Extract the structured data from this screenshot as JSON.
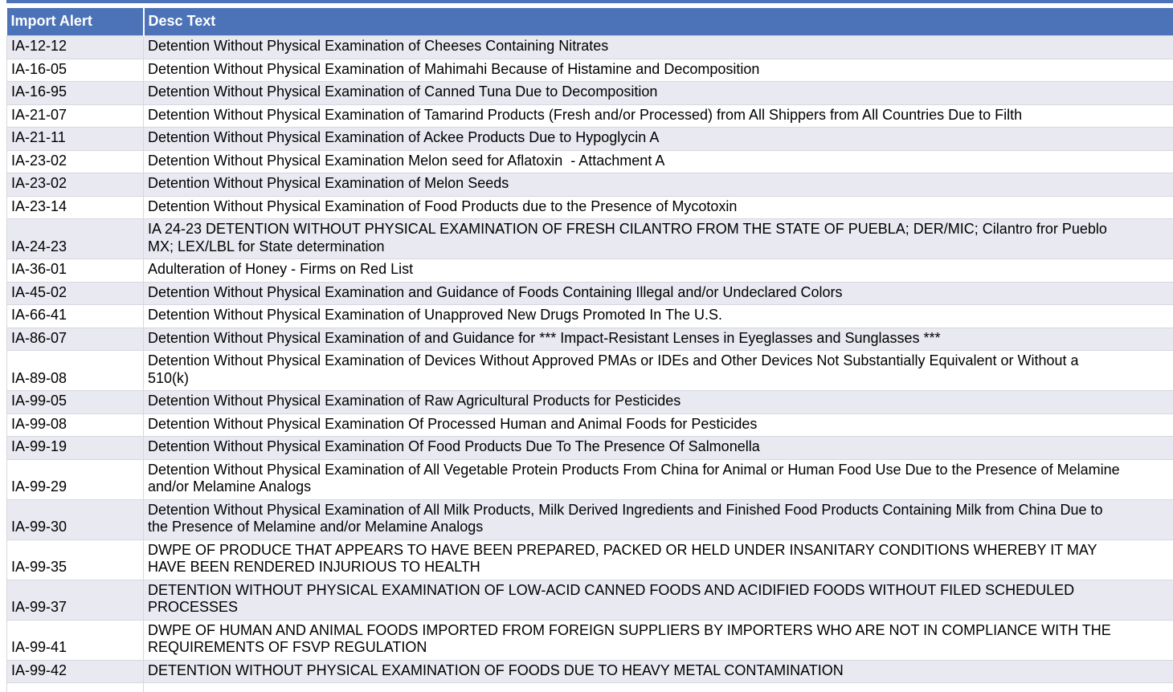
{
  "table": {
    "columns": [
      {
        "label": "Import Alert"
      },
      {
        "label": "Desc Text"
      }
    ],
    "rows": [
      {
        "id": "IA-12-12",
        "desc": "Detention Without Physical Examination of Cheeses Containing Nitrates"
      },
      {
        "id": "IA-16-05",
        "desc": "Detention Without Physical Examination of Mahimahi Because of Histamine and Decomposition"
      },
      {
        "id": "IA-16-95",
        "desc": "Detention Without Physical Examination of Canned Tuna Due to Decomposition"
      },
      {
        "id": "IA-21-07",
        "desc": "Detention Without Physical Examination of Tamarind Products (Fresh and/or Processed) from All Shippers from All Countries Due to Filth"
      },
      {
        "id": "IA-21-11",
        "desc": "Detention Without Physical Examination of Ackee Products Due to Hypoglycin A"
      },
      {
        "id": "IA-23-02",
        "desc": "Detention Without Physical Examination Melon seed for Aflatoxin  - Attachment A"
      },
      {
        "id": "IA-23-02",
        "desc": "Detention Without Physical Examination of Melon Seeds"
      },
      {
        "id": "IA-23-14",
        "desc": "Detention Without Physical Examination of Food Products due to the Presence of Mycotoxin"
      },
      {
        "id": "IA-24-23",
        "desc": "IA 24-23 DETENTION WITHOUT PHYSICAL EXAMINATION OF FRESH CILANTRO FROM THE STATE OF PUEBLA; DER/MIC; Cilantro fror Pueblo MX; LEX/LBL for State determination"
      },
      {
        "id": "IA-36-01",
        "desc": "Adulteration of Honey - Firms on Red List"
      },
      {
        "id": "IA-45-02",
        "desc": "Detention Without Physical Examination and Guidance of Foods Containing Illegal and/or Undeclared Colors"
      },
      {
        "id": "IA-66-41",
        "desc": "Detention Without Physical Examination of Unapproved New Drugs Promoted In The U.S."
      },
      {
        "id": "IA-86-07",
        "desc": "Detention Without Physical Examination of and Guidance for *** Impact-Resistant Lenses in Eyeglasses and Sunglasses ***"
      },
      {
        "id": "IA-89-08",
        "desc": "Detention Without Physical Examination of Devices Without Approved PMAs or IDEs and Other Devices Not Substantially Equivalent or Without a 510(k)"
      },
      {
        "id": "IA-99-05",
        "desc": "Detention Without Physical Examination of Raw Agricultural Products for Pesticides"
      },
      {
        "id": "IA-99-08",
        "desc": "Detention Without Physical Examination Of Processed Human and Animal Foods for Pesticides"
      },
      {
        "id": "IA-99-19",
        "desc": "Detention Without Physical Examination Of Food Products Due To The Presence Of Salmonella"
      },
      {
        "id": "IA-99-29",
        "desc": "Detention Without Physical Examination of All Vegetable Protein Products From China for Animal or Human Food Use Due to the Presence of Melamine and/or Melamine Analogs"
      },
      {
        "id": "IA-99-30",
        "desc": "Detention Without Physical Examination of All Milk Products, Milk Derived Ingredients and Finished Food Products Containing Milk from China Due to the Presence of Melamine and/or Melamine Analogs"
      },
      {
        "id": "IA-99-35",
        "desc": "DWPE OF PRODUCE THAT APPEARS TO HAVE BEEN PREPARED, PACKED OR HELD UNDER INSANITARY CONDITIONS WHEREBY IT MAY HAVE BEEN RENDERED INJURIOUS TO HEALTH"
      },
      {
        "id": "IA-99-37",
        "desc": "DETENTION WITHOUT PHYSICAL EXAMINATION OF LOW-ACID CANNED FOODS AND ACIDIFIED FOODS WITHOUT FILED SCHEDULED PROCESSES"
      },
      {
        "id": "IA-99-41",
        "desc": "DWPE OF HUMAN AND ANIMAL FOODS IMPORTED FROM FOREIGN SUPPLIERS BY IMPORTERS WHO ARE NOT IN COMPLIANCE WITH THE REQUIREMENTS OF FSVP REGULATION"
      },
      {
        "id": "IA-99-42",
        "desc": "DETENTION WITHOUT PHYSICAL EXAMINATION OF FOODS DUE TO HEAVY METAL CONTAMINATION"
      }
    ]
  },
  "colors": {
    "header_bg": "#4c72b7",
    "header_text": "#ffffff",
    "row_alt_bg": "#e9e9f1",
    "row_bg": "#ffffff",
    "border": "#d7d7de",
    "text": "#000000"
  }
}
